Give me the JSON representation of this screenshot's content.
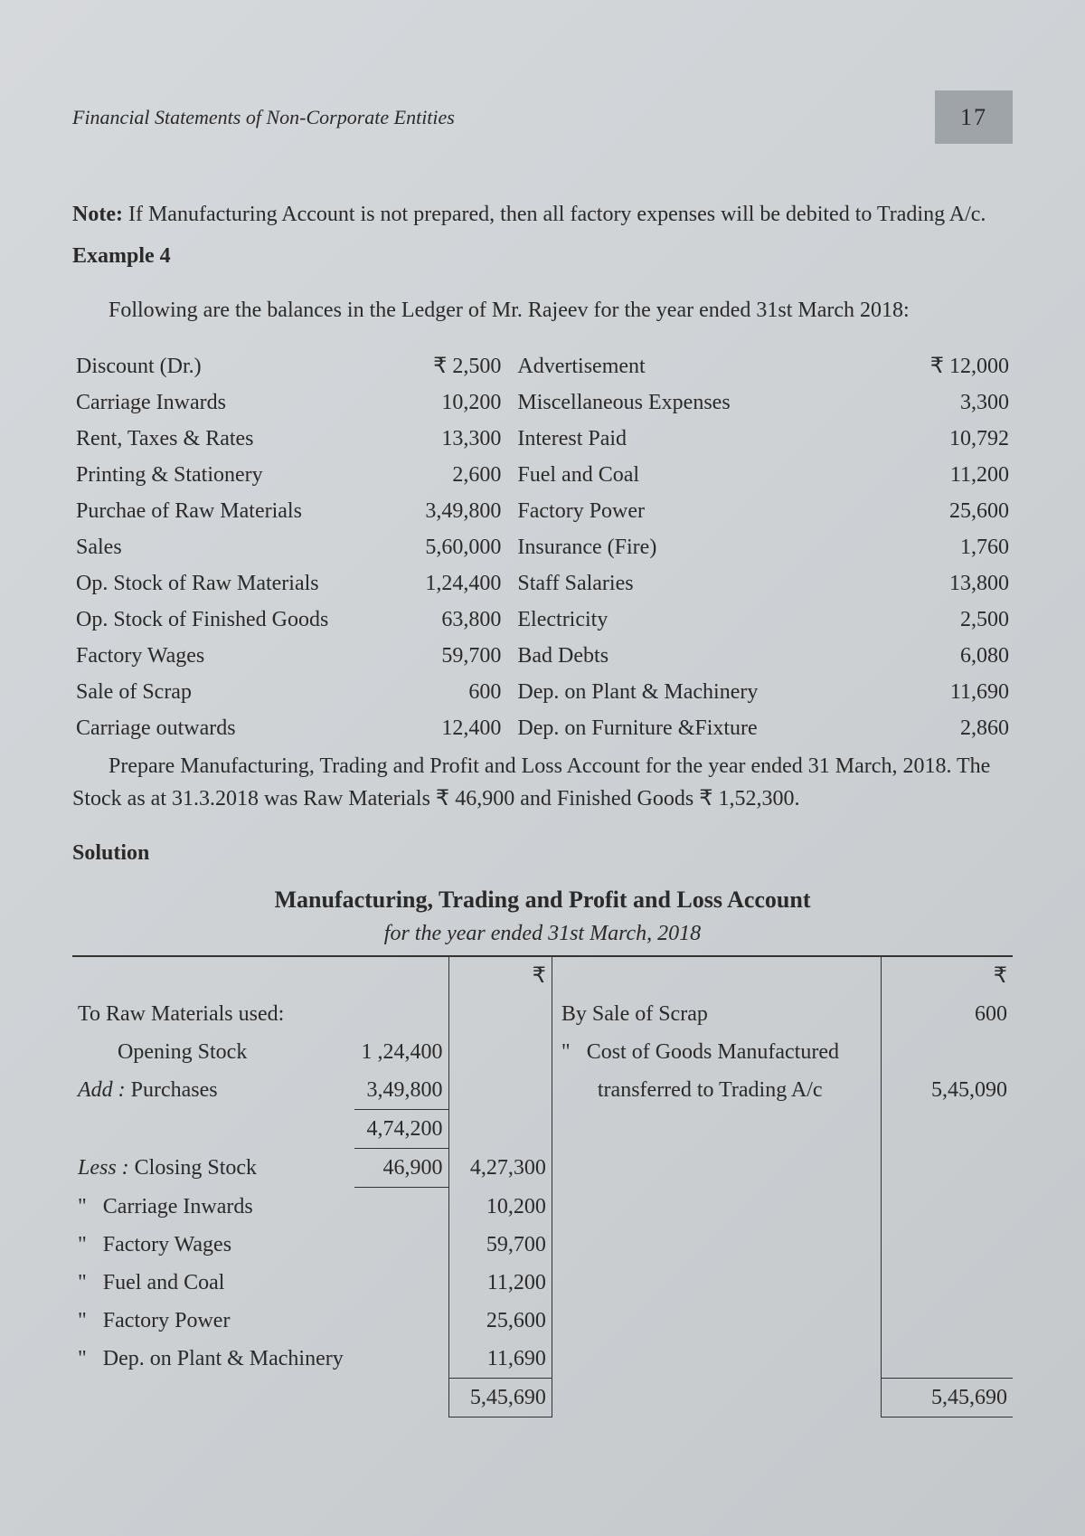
{
  "header": {
    "running_title": "Financial Statements of Non-Corporate Entities",
    "page_number": "17"
  },
  "note": {
    "label": "Note:",
    "text": " If Manufacturing Account is not prepared, then all factory expenses will be debited to Trading A/c."
  },
  "example": {
    "label": "Example 4",
    "intro": "Following are the balances in the Ledger of Mr. Rajeev for the year ended 31st March 2018:"
  },
  "rupee": "₹",
  "ledger_rows": [
    {
      "l": "Discount (Dr.)",
      "la": "₹ 2,500",
      "r": "Advertisement",
      "ra": "₹ 12,000"
    },
    {
      "l": "Carriage Inwards",
      "la": "10,200",
      "r": "Miscellaneous Expenses",
      "ra": "3,300"
    },
    {
      "l": "Rent, Taxes & Rates",
      "la": "13,300",
      "r": "Interest Paid",
      "ra": "10,792"
    },
    {
      "l": "Printing & Stationery",
      "la": "2,600",
      "r": "Fuel and Coal",
      "ra": "11,200"
    },
    {
      "l": "Purchae of Raw Materials",
      "la": "3,49,800",
      "r": "Factory Power",
      "ra": "25,600"
    },
    {
      "l": "Sales",
      "la": "5,60,000",
      "r": "Insurance (Fire)",
      "ra": "1,760"
    },
    {
      "l": "Op. Stock of Raw Materials",
      "la": "1,24,400",
      "r": "Staff Salaries",
      "ra": "13,800"
    },
    {
      "l": "Op. Stock of Finished Goods",
      "la": "63,800",
      "r": "Electricity",
      "ra": "2,500"
    },
    {
      "l": "Factory Wages",
      "la": "59,700",
      "r": "Bad Debts",
      "ra": "6,080"
    },
    {
      "l": "Sale of Scrap",
      "la": "600",
      "r": "Dep. on Plant & Machinery",
      "ra": "11,690"
    },
    {
      "l": "Carriage outwards",
      "la": "12,400",
      "r": "Dep. on Furniture &Fixture",
      "ra": "2,860"
    }
  ],
  "closing": {
    "para1": "Prepare Manufacturing, Trading and Profit and Loss Account for the year ended 31 March, 2018. The Stock as at 31.3.2018 was Raw Materials ₹ 46,900 and Finished Goods ₹ 1,52,300."
  },
  "solution_label": "Solution",
  "account": {
    "title": "Manufacturing, Trading and Profit and Loss Account",
    "subtitle": "for the year ended 31st March, 2018",
    "rupee_header": "₹",
    "dr": {
      "raw_materials_label": "To  Raw Materials used:",
      "opening_stock_label": "Opening Stock",
      "opening_stock_val": "1 ,24,400",
      "add_label": "Add :",
      "purchases_label": " Purchases",
      "purchases_val": "3,49,800",
      "subtotal_val": "4,74,200",
      "less_label": "Less :",
      "closing_stock_label": " Closing Stock",
      "closing_stock_val": "46,900",
      "raw_materials_amt": "4,27,300",
      "items": [
        {
          "label": "Carriage Inwards",
          "amt": "10,200"
        },
        {
          "label": "Factory Wages",
          "amt": "59,700"
        },
        {
          "label": "Fuel and Coal",
          "amt": "11,200"
        },
        {
          "label": "Factory Power",
          "amt": "25,600"
        },
        {
          "label": "Dep. on Plant & Machinery",
          "amt": "11,690"
        }
      ],
      "total": "5,45,690"
    },
    "cr": {
      "sale_scrap_label": "By  Sale of Scrap",
      "sale_scrap_amt": "600",
      "cogm_label1": "Cost of Goods Manufactured",
      "cogm_label2": "transferred to Trading A/c",
      "cogm_amt": "5,45,090",
      "total": "5,45,690"
    },
    "ditto": "\""
  },
  "colors": {
    "page_bg": "#d0d4d7",
    "text": "#2a2a2a",
    "pagenum_bg": "#9ea4a8",
    "rule": "#333333"
  }
}
